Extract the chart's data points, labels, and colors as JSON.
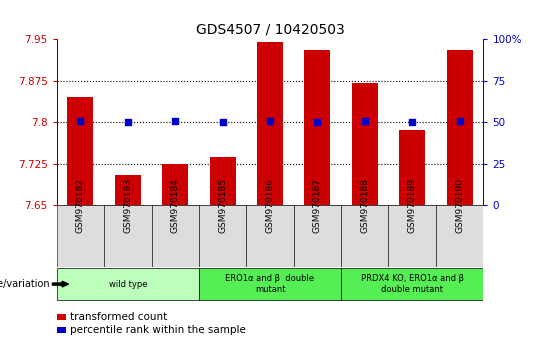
{
  "title": "GDS4507 / 10420503",
  "samples": [
    "GSM970182",
    "GSM970183",
    "GSM970184",
    "GSM970185",
    "GSM970186",
    "GSM970187",
    "GSM970188",
    "GSM970189",
    "GSM970190"
  ],
  "bar_values": [
    7.845,
    7.705,
    7.725,
    7.738,
    7.945,
    7.93,
    7.87,
    7.785,
    7.93
  ],
  "percentile_actual": [
    7.802,
    7.8,
    7.802,
    7.8,
    7.802,
    7.801,
    7.802,
    7.8,
    7.802
  ],
  "ylim_left": [
    7.65,
    7.95
  ],
  "ylim_right": [
    0,
    100
  ],
  "yticks_left": [
    7.65,
    7.725,
    7.8,
    7.875,
    7.95
  ],
  "yticks_right": [
    0,
    25,
    50,
    75,
    100
  ],
  "grid_values": [
    7.725,
    7.8,
    7.875
  ],
  "bar_color": "#cc0000",
  "percentile_color": "#0000cc",
  "bar_width": 0.55,
  "group_ranges": [
    {
      "start": 0,
      "end": 2,
      "color": "#bbffbb",
      "label": "wild type"
    },
    {
      "start": 3,
      "end": 5,
      "color": "#55ee55",
      "label": "ERO1α and β  double\nmutant"
    },
    {
      "start": 6,
      "end": 8,
      "color": "#55ee55",
      "label": "PRDX4 KO, ERO1α and β\ndouble mutant"
    }
  ],
  "xlabel_label": "genotype/variation",
  "legend_items": [
    {
      "color": "#cc0000",
      "label": "transformed count"
    },
    {
      "color": "#0000cc",
      "label": "percentile rank within the sample"
    }
  ],
  "tick_color_left": "#cc0000",
  "tick_color_right": "#0000cc",
  "sample_box_color": "#dddddd",
  "bg_color": "#ffffff"
}
